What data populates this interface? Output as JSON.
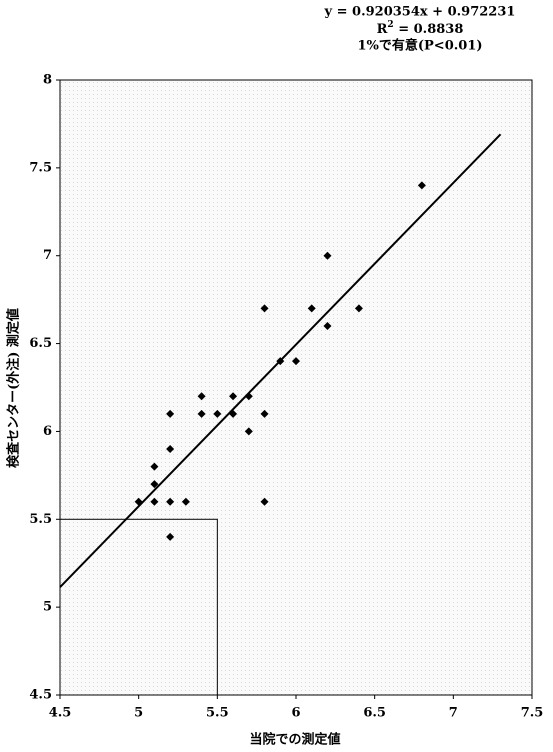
{
  "chart_data": {
    "type": "scatter",
    "annotations": {
      "equation": "y = 0.920354x + 0.972231",
      "r_squared": {
        "label": "R",
        "sup": "2",
        "text": " = 0.8838"
      },
      "significance": "1%で有意(P<0.01)"
    },
    "x_label": "当院での測定値",
    "y_label": "検査センター(外注) 測定値",
    "xlim": [
      4.5,
      7.5
    ],
    "ylim": [
      4.5,
      8
    ],
    "xticks": [
      4.5,
      5,
      5.5,
      6,
      6.5,
      7,
      7.5
    ],
    "yticks": [
      4.5,
      5,
      5.5,
      6,
      6.5,
      7,
      7.5,
      8
    ],
    "color": "#000000",
    "x": [
      5.0,
      5.1,
      5.1,
      5.1,
      5.2,
      5.2,
      5.2,
      5.2,
      5.3,
      5.4,
      5.4,
      5.5,
      5.6,
      5.6,
      5.7,
      5.7,
      5.8,
      5.8,
      5.8,
      5.9,
      6.0,
      6.1,
      6.2,
      6.2,
      6.4,
      6.8
    ],
    "y": [
      5.6,
      5.6,
      5.7,
      5.8,
      5.6,
      5.9,
      6.1,
      5.4,
      5.6,
      6.1,
      6.2,
      6.1,
      6.1,
      6.2,
      6.2,
      6.0,
      6.7,
      6.1,
      5.6,
      6.4,
      6.4,
      6.7,
      7.0,
      6.6,
      6.7,
      7.4
    ],
    "regression": {
      "slope": 0.920354,
      "intercept": 0.972231,
      "x_range": [
        4.5,
        7.3
      ]
    },
    "reference_box": {
      "x": [
        4.5,
        5.5
      ],
      "y": [
        4.5,
        5.5
      ]
    }
  }
}
